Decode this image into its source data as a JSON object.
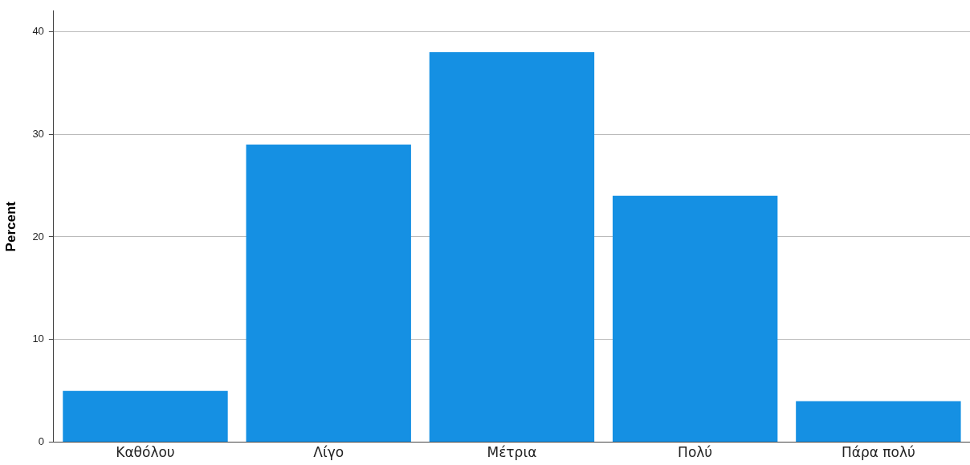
{
  "chart_data": {
    "type": "bar",
    "ylabel": "Percent",
    "categories": [
      "Καθόλου",
      "Λίγο",
      "Μέτρια",
      "Πολύ",
      "Πάρα πολύ"
    ],
    "values": [
      5,
      29,
      38,
      24,
      4
    ],
    "color": "#1590e3",
    "ylim": [
      0,
      42
    ],
    "yticks": [
      0,
      10,
      20,
      30,
      40
    ],
    "grid": "y"
  }
}
